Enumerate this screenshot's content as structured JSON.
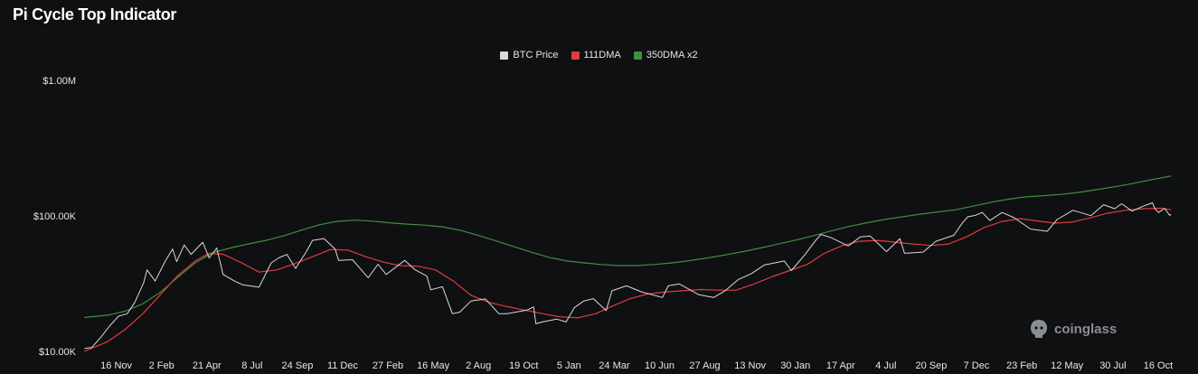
{
  "page": {
    "title": "Pi Cycle Top Indicator",
    "watermark_text": "coinglass",
    "background": "#0f1012"
  },
  "legend": [
    {
      "label": "BTC Price",
      "color": "#d9d9d9"
    },
    {
      "label": "111DMA",
      "color": "#e23b3b"
    },
    {
      "label": "350DMA x2",
      "color": "#3f8f3f"
    }
  ],
  "chart_data": {
    "type": "line",
    "title": "Pi Cycle Top Indicator",
    "y_scale": "log",
    "ylim": [
      10000,
      1000000
    ],
    "y_ticks": [
      {
        "value": 1000000,
        "label": "$1.00M"
      },
      {
        "value": 100000,
        "label": "$100.00K"
      },
      {
        "value": 10000,
        "label": "$10.00K"
      }
    ],
    "x_range": [
      "2020-09-20",
      "2025-11-10"
    ],
    "x_ticks": [
      {
        "date": "2020-11-16",
        "label": "16 Nov"
      },
      {
        "date": "2021-02-02",
        "label": "2 Feb"
      },
      {
        "date": "2021-04-21",
        "label": "21 Apr"
      },
      {
        "date": "2021-07-08",
        "label": "8 Jul"
      },
      {
        "date": "2021-09-24",
        "label": "24 Sep"
      },
      {
        "date": "2021-12-11",
        "label": "11 Dec"
      },
      {
        "date": "2022-02-27",
        "label": "27 Feb"
      },
      {
        "date": "2022-05-16",
        "label": "16 May"
      },
      {
        "date": "2022-08-02",
        "label": "2 Aug"
      },
      {
        "date": "2022-10-19",
        "label": "19 Oct"
      },
      {
        "date": "2023-01-05",
        "label": "5 Jan"
      },
      {
        "date": "2023-03-24",
        "label": "24 Mar"
      },
      {
        "date": "2023-06-10",
        "label": "10 Jun"
      },
      {
        "date": "2023-08-27",
        "label": "27 Aug"
      },
      {
        "date": "2023-11-13",
        "label": "13 Nov"
      },
      {
        "date": "2024-01-30",
        "label": "30 Jan"
      },
      {
        "date": "2024-04-17",
        "label": "17 Apr"
      },
      {
        "date": "2024-07-04",
        "label": "4 Jul"
      },
      {
        "date": "2024-09-20",
        "label": "20 Sep"
      },
      {
        "date": "2024-12-07",
        "label": "7 Dec"
      },
      {
        "date": "2025-02-23",
        "label": "23 Feb"
      },
      {
        "date": "2025-05-12",
        "label": "12 May"
      },
      {
        "date": "2025-07-30",
        "label": "30 Jul"
      },
      {
        "date": "2025-10-16",
        "label": "16 Oct"
      }
    ],
    "grid": false,
    "legend_position": "top-center",
    "series": [
      {
        "name": "BTC Price",
        "color": "#d9d9d9",
        "points": [
          [
            "2020-09-22",
            10500
          ],
          [
            "2020-10-05",
            10700
          ],
          [
            "2020-10-21",
            12800
          ],
          [
            "2020-11-05",
            15500
          ],
          [
            "2020-11-20",
            18200
          ],
          [
            "2020-12-05",
            19000
          ],
          [
            "2020-12-18",
            23000
          ],
          [
            "2021-01-02",
            32000
          ],
          [
            "2021-01-08",
            40000
          ],
          [
            "2021-01-22",
            33000
          ],
          [
            "2021-02-08",
            46000
          ],
          [
            "2021-02-21",
            57000
          ],
          [
            "2021-02-28",
            46000
          ],
          [
            "2021-03-13",
            61000
          ],
          [
            "2021-03-25",
            52000
          ],
          [
            "2021-04-14",
            64000
          ],
          [
            "2021-04-25",
            49000
          ],
          [
            "2021-05-08",
            58000
          ],
          [
            "2021-05-19",
            37000
          ],
          [
            "2021-06-08",
            33000
          ],
          [
            "2021-06-22",
            31000
          ],
          [
            "2021-07-20",
            29800
          ],
          [
            "2021-08-10",
            45000
          ],
          [
            "2021-08-23",
            49000
          ],
          [
            "2021-09-06",
            52000
          ],
          [
            "2021-09-21",
            41000
          ],
          [
            "2021-10-10",
            55000
          ],
          [
            "2021-10-20",
            66000
          ],
          [
            "2021-11-09",
            68000
          ],
          [
            "2021-11-28",
            57000
          ],
          [
            "2021-12-04",
            47000
          ],
          [
            "2021-12-28",
            47500
          ],
          [
            "2022-01-10",
            41000
          ],
          [
            "2022-01-24",
            35000
          ],
          [
            "2022-02-10",
            44000
          ],
          [
            "2022-02-24",
            37000
          ],
          [
            "2022-03-28",
            47000
          ],
          [
            "2022-04-15",
            40000
          ],
          [
            "2022-05-05",
            36000
          ],
          [
            "2022-05-12",
            28500
          ],
          [
            "2022-06-01",
            30000
          ],
          [
            "2022-06-18",
            19000
          ],
          [
            "2022-07-01",
            19500
          ],
          [
            "2022-07-20",
            23500
          ],
          [
            "2022-08-14",
            24400
          ],
          [
            "2022-09-06",
            19000
          ],
          [
            "2022-09-20",
            19000
          ],
          [
            "2022-10-25",
            20200
          ],
          [
            "2022-11-05",
            21300
          ],
          [
            "2022-11-09",
            16000
          ],
          [
            "2022-11-20",
            16500
          ],
          [
            "2022-12-15",
            17300
          ],
          [
            "2022-12-31",
            16500
          ],
          [
            "2023-01-14",
            21000
          ],
          [
            "2023-01-30",
            23500
          ],
          [
            "2023-02-16",
            24500
          ],
          [
            "2023-03-10",
            20000
          ],
          [
            "2023-03-20",
            28000
          ],
          [
            "2023-04-14",
            30500
          ],
          [
            "2023-05-10",
            27500
          ],
          [
            "2023-06-15",
            25000
          ],
          [
            "2023-06-25",
            30500
          ],
          [
            "2023-07-14",
            31500
          ],
          [
            "2023-08-17",
            26200
          ],
          [
            "2023-09-11",
            25000
          ],
          [
            "2023-10-01",
            28000
          ],
          [
            "2023-10-24",
            34000
          ],
          [
            "2023-11-15",
            37500
          ],
          [
            "2023-12-08",
            43500
          ],
          [
            "2024-01-11",
            46500
          ],
          [
            "2024-01-23",
            39500
          ],
          [
            "2024-02-15",
            51500
          ],
          [
            "2024-03-05",
            66000
          ],
          [
            "2024-03-14",
            73000
          ],
          [
            "2024-04-01",
            69000
          ],
          [
            "2024-04-30",
            60000
          ],
          [
            "2024-05-21",
            70000
          ],
          [
            "2024-06-07",
            71000
          ],
          [
            "2024-07-05",
            54500
          ],
          [
            "2024-07-28",
            68000
          ],
          [
            "2024-08-05",
            53000
          ],
          [
            "2024-09-06",
            54000
          ],
          [
            "2024-09-28",
            65000
          ],
          [
            "2024-10-29",
            72000
          ],
          [
            "2024-11-12",
            88000
          ],
          [
            "2024-11-22",
            98500
          ],
          [
            "2024-12-05",
            101000
          ],
          [
            "2024-12-17",
            106000
          ],
          [
            "2024-12-30",
            92500
          ],
          [
            "2025-01-20",
            106000
          ],
          [
            "2025-02-10",
            97000
          ],
          [
            "2025-03-10",
            80000
          ],
          [
            "2025-04-08",
            77000
          ],
          [
            "2025-04-25",
            94000
          ],
          [
            "2025-05-22",
            110000
          ],
          [
            "2025-06-22",
            100500
          ],
          [
            "2025-07-14",
            121000
          ],
          [
            "2025-08-02",
            113000
          ],
          [
            "2025-08-14",
            123000
          ],
          [
            "2025-09-01",
            108500
          ],
          [
            "2025-09-18",
            117000
          ],
          [
            "2025-10-06",
            125000
          ],
          [
            "2025-10-11",
            112000
          ],
          [
            "2025-10-17",
            106000
          ],
          [
            "2025-10-27",
            114000
          ],
          [
            "2025-11-05",
            101000
          ],
          [
            "2025-11-07",
            103000
          ]
        ]
      },
      {
        "name": "111DMA",
        "color": "#e23b3b",
        "points": [
          [
            "2020-09-22",
            10000
          ],
          [
            "2020-11-01",
            11800
          ],
          [
            "2020-12-01",
            14500
          ],
          [
            "2021-01-01",
            19000
          ],
          [
            "2021-02-01",
            26500
          ],
          [
            "2021-03-01",
            36000
          ],
          [
            "2021-04-01",
            46500
          ],
          [
            "2021-04-25",
            53000
          ],
          [
            "2021-05-20",
            52000
          ],
          [
            "2021-06-20",
            45000
          ],
          [
            "2021-07-20",
            38500
          ],
          [
            "2021-08-20",
            40000
          ],
          [
            "2021-09-20",
            44500
          ],
          [
            "2021-10-20",
            50000
          ],
          [
            "2021-11-20",
            56500
          ],
          [
            "2021-12-20",
            56000
          ],
          [
            "2022-01-20",
            50000
          ],
          [
            "2022-02-20",
            45500
          ],
          [
            "2022-03-20",
            43000
          ],
          [
            "2022-04-20",
            42500
          ],
          [
            "2022-05-20",
            40000
          ],
          [
            "2022-06-20",
            33000
          ],
          [
            "2022-07-20",
            26000
          ],
          [
            "2022-08-20",
            23000
          ],
          [
            "2022-09-20",
            21400
          ],
          [
            "2022-10-20",
            20200
          ],
          [
            "2022-11-20",
            19000
          ],
          [
            "2022-12-20",
            18000
          ],
          [
            "2023-01-20",
            17700
          ],
          [
            "2023-02-20",
            19000
          ],
          [
            "2023-03-20",
            21500
          ],
          [
            "2023-04-20",
            24500
          ],
          [
            "2023-05-20",
            26500
          ],
          [
            "2023-06-20",
            27500
          ],
          [
            "2023-07-20",
            28000
          ],
          [
            "2023-08-20",
            28600
          ],
          [
            "2023-09-20",
            28300
          ],
          [
            "2023-10-20",
            28300
          ],
          [
            "2023-11-20",
            31500
          ],
          [
            "2023-12-20",
            35500
          ],
          [
            "2024-01-20",
            39500
          ],
          [
            "2024-02-20",
            44000
          ],
          [
            "2024-03-20",
            53000
          ],
          [
            "2024-04-20",
            60500
          ],
          [
            "2024-05-20",
            65000
          ],
          [
            "2024-06-20",
            66000
          ],
          [
            "2024-07-20",
            64000
          ],
          [
            "2024-08-20",
            62000
          ],
          [
            "2024-09-20",
            60500
          ],
          [
            "2024-10-20",
            62000
          ],
          [
            "2024-11-20",
            70000
          ],
          [
            "2024-12-20",
            82000
          ],
          [
            "2025-01-20",
            91000
          ],
          [
            "2025-02-20",
            95500
          ],
          [
            "2025-03-20",
            92000
          ],
          [
            "2025-04-20",
            88500
          ],
          [
            "2025-05-20",
            90000
          ],
          [
            "2025-06-20",
            96500
          ],
          [
            "2025-07-20",
            104500
          ],
          [
            "2025-08-20",
            110000
          ],
          [
            "2025-09-20",
            113000
          ],
          [
            "2025-10-20",
            114000
          ],
          [
            "2025-11-07",
            111000
          ]
        ]
      },
      {
        "name": "350DMA x2",
        "color": "#3f8f3f",
        "points": [
          [
            "2020-09-22",
            17800
          ],
          [
            "2020-11-01",
            18500
          ],
          [
            "2020-12-01",
            19800
          ],
          [
            "2021-01-01",
            22500
          ],
          [
            "2021-02-01",
            27500
          ],
          [
            "2021-03-01",
            35000
          ],
          [
            "2021-04-01",
            45000
          ],
          [
            "2021-05-01",
            53500
          ],
          [
            "2021-06-01",
            58000
          ],
          [
            "2021-07-01",
            62000
          ],
          [
            "2021-08-01",
            66000
          ],
          [
            "2021-09-01",
            71500
          ],
          [
            "2021-10-01",
            78500
          ],
          [
            "2021-11-01",
            86000
          ],
          [
            "2021-12-01",
            91000
          ],
          [
            "2022-01-01",
            93000
          ],
          [
            "2022-02-01",
            91500
          ],
          [
            "2022-03-01",
            89000
          ],
          [
            "2022-04-01",
            87000
          ],
          [
            "2022-05-01",
            85500
          ],
          [
            "2022-06-01",
            83000
          ],
          [
            "2022-07-01",
            78500
          ],
          [
            "2022-08-01",
            72000
          ],
          [
            "2022-09-01",
            65500
          ],
          [
            "2022-10-01",
            59500
          ],
          [
            "2022-11-01",
            54000
          ],
          [
            "2022-12-01",
            49500
          ],
          [
            "2023-01-01",
            46500
          ],
          [
            "2023-02-01",
            45000
          ],
          [
            "2023-03-01",
            43800
          ],
          [
            "2023-04-01",
            43000
          ],
          [
            "2023-05-01",
            43000
          ],
          [
            "2023-06-01",
            43800
          ],
          [
            "2023-07-01",
            45000
          ],
          [
            "2023-08-01",
            46800
          ],
          [
            "2023-09-01",
            49000
          ],
          [
            "2023-10-01",
            51500
          ],
          [
            "2023-11-01",
            54500
          ],
          [
            "2023-12-01",
            58000
          ],
          [
            "2024-01-01",
            62000
          ],
          [
            "2024-02-01",
            66500
          ],
          [
            "2024-03-01",
            71500
          ],
          [
            "2024-04-01",
            77500
          ],
          [
            "2024-05-01",
            83500
          ],
          [
            "2024-06-01",
            89000
          ],
          [
            "2024-07-01",
            94000
          ],
          [
            "2024-08-01",
            98500
          ],
          [
            "2024-09-01",
            103000
          ],
          [
            "2024-10-01",
            107000
          ],
          [
            "2024-11-01",
            111000
          ],
          [
            "2024-12-01",
            118000
          ],
          [
            "2025-01-01",
            126000
          ],
          [
            "2025-02-01",
            133000
          ],
          [
            "2025-03-01",
            138000
          ],
          [
            "2025-04-01",
            141000
          ],
          [
            "2025-05-01",
            144000
          ],
          [
            "2025-06-01",
            149000
          ],
          [
            "2025-07-01",
            156000
          ],
          [
            "2025-08-01",
            164000
          ],
          [
            "2025-09-01",
            173000
          ],
          [
            "2025-10-01",
            184000
          ],
          [
            "2025-11-07",
            197000
          ]
        ]
      }
    ]
  }
}
